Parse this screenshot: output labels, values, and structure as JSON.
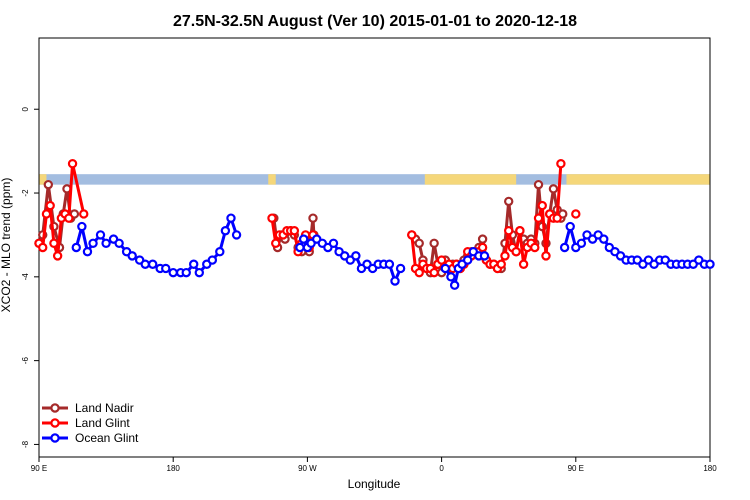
{
  "chart_data": {
    "type": "line",
    "title": "27.5N-32.5N August (Ver 10)   2015-01-01 to 2020-12-18",
    "xlabel": "Longitude",
    "ylabel": "XCO2 - MLO trend (ppm)",
    "xlim": [
      -90,
      270
    ],
    "ylim": [
      -8.3,
      1.7
    ],
    "x_ticks": [
      {
        "value": -90,
        "label": "90 E"
      },
      {
        "value": -18,
        "label": "180"
      },
      {
        "value": 54,
        "label": "90 W"
      },
      {
        "value": 126,
        "label": "0"
      },
      {
        "value": 198,
        "label": "90 E"
      },
      {
        "value": 270,
        "label": "180"
      }
    ],
    "y_ticks": [
      {
        "value": 0,
        "label": "0"
      },
      {
        "value": -2,
        "label": "-2"
      },
      {
        "value": -4,
        "label": "-4"
      },
      {
        "value": -6,
        "label": "-6"
      },
      {
        "value": -8,
        "label": "-8"
      }
    ],
    "land_mask": {
      "y_range": [
        -1.8,
        -1.55
      ],
      "ocean_color": "#a3bde0",
      "land_color": "#f5d77a",
      "land_segments": [
        [
          -90,
          -86
        ],
        [
          33,
          37
        ],
        [
          117,
          166
        ],
        [
          193,
          270
        ]
      ]
    },
    "legend_position": "bottom-left",
    "series": [
      {
        "name": "Land Nadir",
        "color": "#a52a2a",
        "segments": [
          [
            [
              -90,
              -3.2
            ],
            [
              -88,
              -3.0
            ],
            [
              -85,
              -1.8
            ],
            [
              -82,
              -2.8
            ],
            [
              -79,
              -3.3
            ],
            [
              -77,
              -2.5
            ],
            [
              -75,
              -1.9
            ],
            [
              -73,
              -2.6
            ],
            [
              -71,
              -2.5
            ]
          ],
          [
            [
              36,
              -2.6
            ],
            [
              38,
              -3.3
            ],
            [
              40,
              -3.0
            ],
            [
              42,
              -3.1
            ],
            [
              45,
              -2.9
            ],
            [
              47,
              -3.0
            ],
            [
              49,
              -3.3
            ],
            [
              51,
              -3.4
            ],
            [
              53,
              -3.1
            ],
            [
              55,
              -3.4
            ],
            [
              57,
              -2.6
            ],
            [
              57.5,
              -3.0
            ]
          ],
          [
            [
              110,
              -3.0
            ],
            [
              112,
              -3.1
            ],
            [
              114,
              -3.2
            ],
            [
              116,
              -3.6
            ],
            [
              118,
              -3.8
            ],
            [
              120,
              -3.9
            ],
            [
              122,
              -3.2
            ],
            [
              124,
              -3.7
            ],
            [
              126,
              -3.9
            ],
            [
              128,
              -3.6
            ],
            [
              130,
              -3.8
            ],
            [
              132,
              -3.7
            ],
            [
              134,
              -3.7
            ],
            [
              136,
              -3.8
            ],
            [
              138,
              -3.6
            ],
            [
              140,
              -3.5
            ],
            [
              142,
              -3.4
            ],
            [
              144,
              -3.4
            ],
            [
              146,
              -3.3
            ],
            [
              148,
              -3.1
            ],
            [
              150,
              -3.6
            ],
            [
              152,
              -3.7
            ],
            [
              154,
              -3.7
            ],
            [
              156,
              -3.8
            ],
            [
              158,
              -3.8
            ],
            [
              160,
              -3.2
            ],
            [
              162,
              -2.2
            ],
            [
              164,
              -3.0
            ],
            [
              166,
              -3.4
            ],
            [
              168,
              -2.9
            ],
            [
              170,
              -3.1
            ],
            [
              172,
              -3.2
            ],
            [
              174,
              -3.1
            ],
            [
              176,
              -3.2
            ],
            [
              178,
              -1.8
            ],
            [
              180,
              -2.8
            ],
            [
              182,
              -3.2
            ],
            [
              184,
              -2.5
            ],
            [
              186,
              -1.9
            ],
            [
              188,
              -2.4
            ],
            [
              190,
              -2.6
            ],
            [
              191,
              -2.5
            ]
          ]
        ]
      },
      {
        "name": "Land Glint",
        "color": "#ff0000",
        "segments": [
          [
            [
              -90,
              -3.2
            ],
            [
              -88,
              -3.3
            ],
            [
              -86,
              -2.5
            ],
            [
              -84,
              -2.3
            ],
            [
              -82,
              -3.2
            ],
            [
              -80,
              -3.5
            ],
            [
              -78,
              -2.6
            ],
            [
              -76,
              -2.5
            ],
            [
              -74,
              -2.6
            ],
            [
              -72,
              -1.3
            ],
            [
              -66,
              -2.5
            ]
          ],
          [
            [
              35,
              -2.6
            ],
            [
              37,
              -3.2
            ],
            [
              39,
              -3.0
            ],
            [
              41,
              -3.0
            ],
            [
              43,
              -2.9
            ],
            [
              45,
              -2.9
            ],
            [
              47,
              -2.9
            ],
            [
              49,
              -3.4
            ],
            [
              51,
              -3.2
            ],
            [
              53,
              -3.0
            ],
            [
              55,
              -3.3
            ],
            [
              57,
              -3.0
            ]
          ],
          [
            [
              110,
              -3.0
            ],
            [
              112,
              -3.8
            ],
            [
              114,
              -3.9
            ],
            [
              116,
              -3.7
            ],
            [
              118,
              -3.8
            ],
            [
              120,
              -3.8
            ],
            [
              122,
              -3.9
            ],
            [
              124,
              -3.7
            ],
            [
              126,
              -3.6
            ],
            [
              128,
              -3.8
            ],
            [
              130,
              -3.7
            ],
            [
              132,
              -3.8
            ],
            [
              134,
              -3.7
            ],
            [
              136,
              -3.8
            ],
            [
              138,
              -3.7
            ],
            [
              140,
              -3.4
            ],
            [
              142,
              -3.5
            ],
            [
              144,
              -3.4
            ],
            [
              146,
              -3.4
            ],
            [
              148,
              -3.3
            ],
            [
              150,
              -3.6
            ],
            [
              152,
              -3.7
            ],
            [
              154,
              -3.7
            ],
            [
              156,
              -3.8
            ],
            [
              158,
              -3.7
            ],
            [
              160,
              -3.5
            ],
            [
              162,
              -2.9
            ],
            [
              164,
              -3.3
            ],
            [
              166,
              -3.4
            ],
            [
              168,
              -2.9
            ],
            [
              170,
              -3.7
            ],
            [
              172,
              -3.3
            ],
            [
              174,
              -3.2
            ],
            [
              176,
              -3.3
            ],
            [
              178,
              -2.6
            ],
            [
              180,
              -2.3
            ],
            [
              182,
              -3.5
            ],
            [
              184,
              -2.5
            ],
            [
              186,
              -2.6
            ],
            [
              188,
              -2.6
            ],
            [
              190,
              -1.3
            ]
          ],
          [
            [
              198,
              -2.5
            ]
          ]
        ]
      },
      {
        "name": "Ocean Glint",
        "color": "#0000ff",
        "segments": [
          [
            [
              -70,
              -3.3
            ],
            [
              -67,
              -2.8
            ],
            [
              -64,
              -3.4
            ],
            [
              -61,
              -3.2
            ],
            [
              -57,
              -3.0
            ],
            [
              -54,
              -3.2
            ],
            [
              -50,
              -3.1
            ],
            [
              -47,
              -3.2
            ],
            [
              -43,
              -3.4
            ],
            [
              -40,
              -3.5
            ],
            [
              -36,
              -3.6
            ],
            [
              -33,
              -3.7
            ],
            [
              -29,
              -3.7
            ],
            [
              -25,
              -3.8
            ],
            [
              -22,
              -3.8
            ],
            [
              -18,
              -3.9
            ],
            [
              -14,
              -3.9
            ],
            [
              -11,
              -3.9
            ],
            [
              -7,
              -3.7
            ],
            [
              -4,
              -3.9
            ],
            [
              0,
              -3.7
            ],
            [
              3,
              -3.6
            ],
            [
              7,
              -3.4
            ],
            [
              10,
              -2.9
            ],
            [
              13,
              -2.6
            ],
            [
              16,
              -3.0
            ]
          ],
          [
            [
              50,
              -3.3
            ],
            [
              52,
              -3.1
            ],
            [
              54,
              -3.3
            ],
            [
              56,
              -3.2
            ],
            [
              59,
              -3.1
            ],
            [
              62,
              -3.2
            ],
            [
              65,
              -3.3
            ],
            [
              68,
              -3.2
            ],
            [
              71,
              -3.4
            ],
            [
              74,
              -3.5
            ],
            [
              77,
              -3.6
            ],
            [
              80,
              -3.5
            ],
            [
              83,
              -3.8
            ],
            [
              86,
              -3.7
            ],
            [
              89,
              -3.8
            ],
            [
              92,
              -3.7
            ],
            [
              95,
              -3.7
            ],
            [
              98,
              -3.7
            ],
            [
              101,
              -4.1
            ],
            [
              104,
              -3.8
            ]
          ],
          [
            [
              128,
              -3.8
            ],
            [
              131,
              -4.0
            ],
            [
              133,
              -4.2
            ],
            [
              135,
              -3.8
            ],
            [
              137,
              -3.7
            ],
            [
              140,
              -3.6
            ],
            [
              143,
              -3.4
            ],
            [
              146,
              -3.5
            ],
            [
              149,
              -3.5
            ]
          ],
          [
            [
              192,
              -3.3
            ],
            [
              195,
              -2.8
            ],
            [
              198,
              -3.3
            ],
            [
              201,
              -3.2
            ],
            [
              204,
              -3.0
            ],
            [
              207,
              -3.1
            ],
            [
              210,
              -3.0
            ],
            [
              213,
              -3.1
            ],
            [
              216,
              -3.3
            ],
            [
              219,
              -3.4
            ],
            [
              222,
              -3.5
            ],
            [
              225,
              -3.6
            ],
            [
              228,
              -3.6
            ],
            [
              231,
              -3.6
            ],
            [
              234,
              -3.7
            ],
            [
              237,
              -3.6
            ],
            [
              240,
              -3.7
            ],
            [
              243,
              -3.6
            ],
            [
              246,
              -3.6
            ],
            [
              249,
              -3.7
            ],
            [
              252,
              -3.7
            ],
            [
              255,
              -3.7
            ],
            [
              258,
              -3.7
            ],
            [
              261,
              -3.7
            ],
            [
              264,
              -3.6
            ],
            [
              267,
              -3.7
            ],
            [
              270,
              -3.7
            ]
          ]
        ]
      }
    ]
  }
}
